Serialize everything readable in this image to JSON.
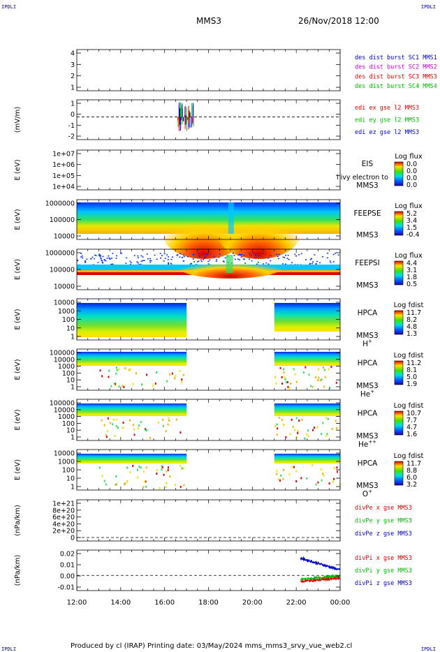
{
  "header": {
    "corner_left": "IPDLI",
    "corner_right": "IPDLI",
    "spacecraft": "MMS3",
    "date": "26/Nov/2018 12:00"
  },
  "footer": {
    "text": "Produced by cl (IRAP)   Printing date: 03/May/2024   mms_mms3_srvy_vue_web2.cl"
  },
  "colors": {
    "c1": "#0000cc",
    "c2": "#cc00cc",
    "c3": "#dd0000",
    "c4": "#00bb00",
    "dash": "#000000"
  },
  "chart_data": {
    "type": "spectrogram-stack",
    "x_ticks": [
      "12:00",
      "14:00",
      "16:00",
      "18:00",
      "20:00",
      "22:00",
      "00:00"
    ],
    "x_range_hours": [
      12,
      24
    ],
    "panels": [
      {
        "id": "burst",
        "ylabel": "",
        "yticks": [
          "4",
          "3",
          "2",
          "1"
        ],
        "legend": [
          {
            "text": "des dist burst SC1 MMS1",
            "color": "#0000cc"
          },
          {
            "text": "des dist burst SC2 MMS2",
            "color": "#cc00cc"
          },
          {
            "text": "des dist burst SC3 MMS3",
            "color": "#dd0000"
          },
          {
            "text": "des dist burst SC4 MMS4",
            "color": "#00bb00"
          }
        ]
      },
      {
        "id": "edi",
        "ylabel": "(mV/m)",
        "yticks": [
          "1",
          "0",
          "-1",
          "-2"
        ],
        "ylim": [
          -2,
          1.5
        ],
        "legend": [
          {
            "text": "edi ex gse l2 MMS3",
            "color": "#dd0000"
          },
          {
            "text": "edi ey gse l2 MMS3",
            "color": "#00bb00"
          },
          {
            "text": "edi ez gse l2 MMS3",
            "color": "#0000cc"
          }
        ]
      },
      {
        "id": "eis",
        "ylabel": "E (eV)",
        "yticks": [
          "1e+07",
          "1e+06",
          "1e+05",
          "1e+04"
        ],
        "instrument": [
          "EIS",
          "MMS3"
        ],
        "overlap": "l ivy electron to",
        "cbar": {
          "title": "Log flux",
          "values": [
            "0.0",
            "0.0",
            "0.0",
            "0.0"
          ]
        }
      },
      {
        "id": "feepse",
        "ylabel": "E (eV)",
        "yticks": [
          "1000000",
          "100000",
          "10000"
        ],
        "instrument": [
          "FEEPSE",
          "MMS3"
        ],
        "cbar": {
          "title": "Log flux",
          "values": [
            "5.2",
            "3.4",
            "1.5",
            "-0.4"
          ]
        }
      },
      {
        "id": "feepsi",
        "ylabel": "E (eV)",
        "yticks": [
          "1000000",
          "100000",
          "10000"
        ],
        "instrument": [
          "FEEPSI",
          "MMS3"
        ],
        "cbar": {
          "title": "Log flux",
          "values": [
            "4.4",
            "3.1",
            "1.8",
            "0.5"
          ]
        }
      },
      {
        "id": "hpca_h",
        "ylabel": "E (eV)",
        "yticks": [
          "10000",
          "1000",
          "100",
          "10",
          "1"
        ],
        "instrument": [
          "HPCA",
          "MMS3",
          "H",
          "+"
        ],
        "cbar": {
          "title": "Log fdist",
          "values": [
            "11.7",
            "8.2",
            "4.8",
            "1.3"
          ]
        }
      },
      {
        "id": "hpca_he",
        "ylabel": "E (eV)",
        "yticks": [
          "100000",
          "10000",
          "1000",
          "100",
          "10",
          "1"
        ],
        "instrument": [
          "HPCA",
          "MMS3",
          "He",
          "+"
        ],
        "cbar": {
          "title": "Log fdist",
          "values": [
            "11.2",
            "8.1",
            "5.0",
            "1.9"
          ]
        }
      },
      {
        "id": "hpca_hepp",
        "ylabel": "E (eV)",
        "yticks": [
          "100000",
          "10000",
          "1000",
          "100",
          "10",
          "1"
        ],
        "instrument": [
          "HPCA",
          "MMS3",
          "He",
          "++"
        ],
        "cbar": {
          "title": "Log fdist",
          "values": [
            "10.7",
            "7.7",
            "4.7",
            "1.6"
          ]
        }
      },
      {
        "id": "hpca_o",
        "ylabel": "E (eV)",
        "yticks": [
          "10000",
          "1000",
          "100",
          "10",
          "1"
        ],
        "instrument": [
          "HPCA",
          "MMS3",
          "O",
          "+"
        ],
        "cbar": {
          "title": "Log fdist",
          "values": [
            "11.7",
            "8.8",
            "6.0",
            "3.2"
          ]
        }
      },
      {
        "id": "divpe",
        "ylabel": "(nPa/km)",
        "yticks": [
          "1e+21",
          "8e+20",
          "6e+20",
          "4e+20",
          "2e+20",
          "0"
        ],
        "legend": [
          {
            "text": "divPe x gse MMS3",
            "color": "#dd0000"
          },
          {
            "text": "divPe y gse MMS3",
            "color": "#00bb00"
          },
          {
            "text": "divPe z gse MMS3",
            "color": "#0000cc"
          }
        ]
      },
      {
        "id": "divpi",
        "ylabel": "(nPa/km)",
        "yticks": [
          "0.02",
          "0.01",
          "0.00",
          "-0.01"
        ],
        "ylim": [
          -0.015,
          0.025
        ],
        "legend": [
          {
            "text": "divPi x gse MMS3",
            "color": "#dd0000"
          },
          {
            "text": "divPi y gse MMS3",
            "color": "#00bb00"
          },
          {
            "text": "divPi z gse MMS3",
            "color": "#0000cc"
          }
        ]
      }
    ]
  }
}
